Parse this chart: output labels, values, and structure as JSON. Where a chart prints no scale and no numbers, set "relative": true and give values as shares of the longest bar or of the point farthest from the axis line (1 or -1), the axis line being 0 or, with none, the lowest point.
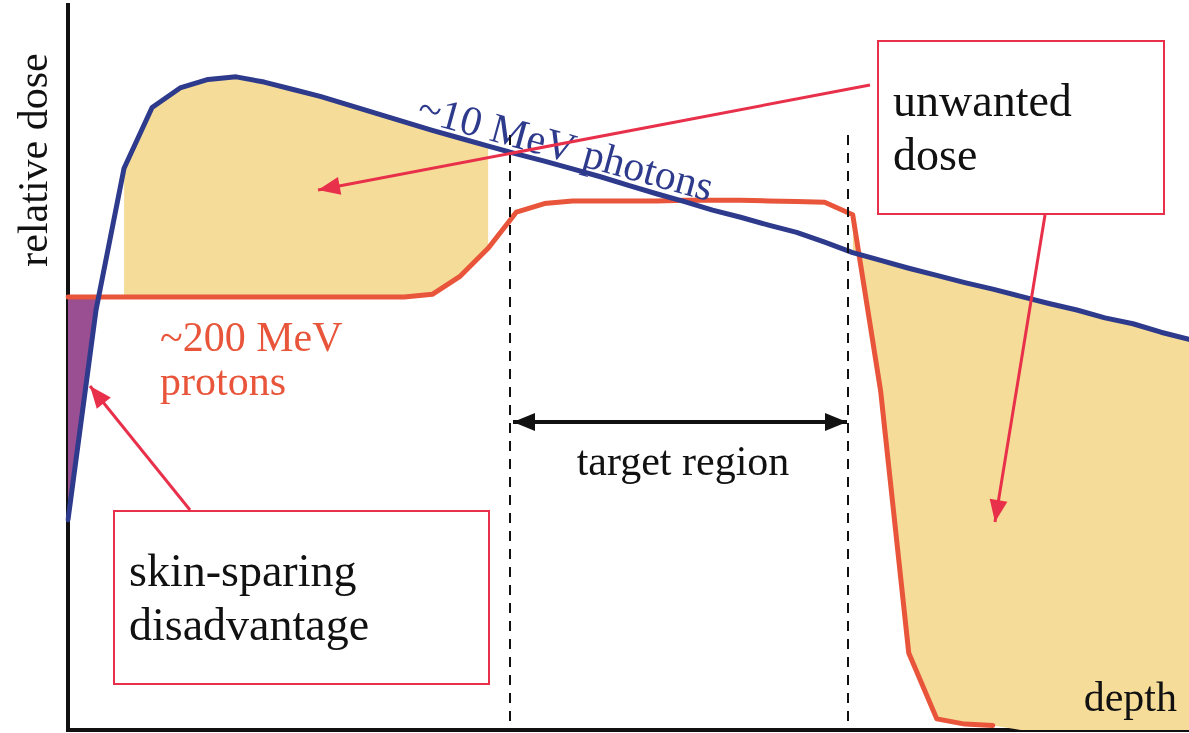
{
  "chart_data": {
    "type": "line",
    "relative": true,
    "xlabel": "depth",
    "ylabel": "relative dose",
    "marker": "none",
    "line_style": "solid",
    "categories": [
      null,
      null,
      null,
      null,
      null,
      null,
      null,
      null,
      null,
      null,
      null,
      null,
      null,
      null,
      null,
      null,
      null,
      null,
      null,
      null,
      null,
      null,
      null,
      null,
      null,
      null,
      null,
      null,
      null,
      null,
      null,
      null,
      null,
      null,
      null,
      null,
      null,
      null,
      null,
      null,
      null
    ],
    "series": [
      {
        "name": "~10 MeV photons",
        "color": "#2e3a8c",
        "values": [
          0.322,
          0.643,
          0.86,
          0.953,
          0.983,
          0.996,
          1,
          0.992,
          0.981,
          0.97,
          0.957,
          0.944,
          0.931,
          0.918,
          0.906,
          0.894,
          0.882,
          0.871,
          0.859,
          0.847,
          0.834,
          0.821,
          0.809,
          0.796,
          0.785,
          0.773,
          0.762,
          0.747,
          0.731,
          0.719,
          0.707,
          0.696,
          0.685,
          0.675,
          0.664,
          0.653,
          0.643,
          0.631,
          0.622,
          0.609,
          0.598
        ],
        "lower": [
          null,
          null,
          0.663,
          0.663,
          0.663,
          0.663,
          0.663,
          0.663,
          0.663,
          0.663,
          0.663,
          0.663,
          0.663,
          0.667,
          0.695,
          0.738,
          null,
          null,
          null,
          null,
          null,
          null,
          null,
          null,
          null,
          null,
          null,
          null,
          0.789,
          0.518,
          0.118,
          0.017,
          0.009,
          0.007,
          0,
          0,
          0,
          0,
          0,
          0,
          0
        ],
        "upper": [
          null,
          null,
          0.86,
          0.953,
          0.983,
          0.996,
          1,
          0.992,
          0.981,
          0.97,
          0.957,
          0.944,
          0.931,
          0.918,
          0.906,
          0.894,
          null,
          null,
          null,
          null,
          null,
          null,
          null,
          null,
          null,
          null,
          null,
          null,
          0.731,
          0.719,
          0.707,
          0.696,
          0.685,
          0.675,
          0.664,
          0.653,
          0.643,
          0.631,
          0.622,
          0.609,
          0.598
        ]
      },
      {
        "name": "~200 MeV protons",
        "color": "#e8553a",
        "values": [
          0.663,
          0.663,
          0.663,
          0.663,
          0.663,
          0.663,
          0.663,
          0.663,
          0.663,
          0.663,
          0.663,
          0.663,
          0.663,
          0.667,
          0.695,
          0.738,
          0.793,
          0.806,
          0.81,
          0.81,
          0.81,
          0.81,
          0.811,
          0.811,
          0.811,
          0.81,
          0.809,
          0.808,
          0.789,
          0.518,
          0.118,
          0.017,
          0.009,
          0.007,
          null,
          null,
          null,
          null,
          null,
          null,
          null
        ],
        "lower": [
          0.322,
          0.643,
          null,
          null,
          null,
          null,
          null,
          null,
          null,
          null,
          null,
          null,
          null,
          null,
          null,
          null,
          null,
          null,
          null,
          null,
          null,
          null,
          null,
          null,
          null,
          null,
          null,
          null,
          null,
          null,
          null,
          null,
          null,
          null,
          null,
          null,
          null,
          null,
          null,
          null,
          null
        ],
        "upper": [
          0.663,
          0.663,
          null,
          null,
          null,
          null,
          null,
          null,
          null,
          null,
          null,
          null,
          null,
          null,
          null,
          null,
          null,
          null,
          null,
          null,
          null,
          null,
          null,
          null,
          null,
          null,
          null,
          null,
          null,
          null,
          null,
          null,
          null,
          null,
          null,
          null,
          null,
          null,
          null,
          null,
          null
        ]
      }
    ],
    "annotations": [
      "unwanted dose",
      "skin-sparing disadvantage",
      "target region"
    ]
  }
}
